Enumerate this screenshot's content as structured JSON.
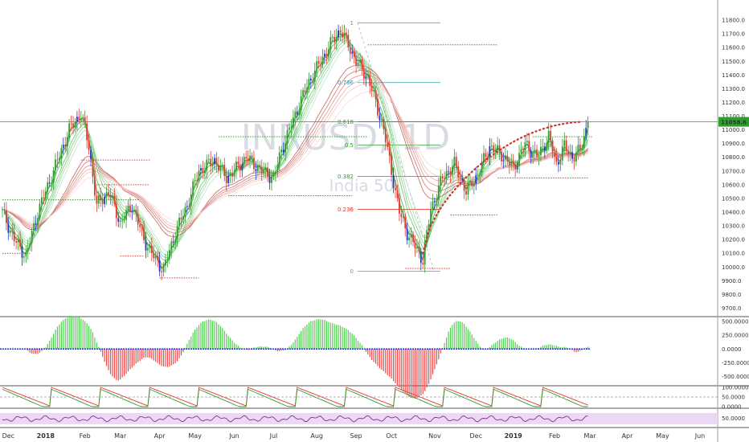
{
  "chart_data": {
    "type": "candlestick",
    "title": "",
    "watermark": {
      "symbol": "INRUSD, 1D",
      "subtitle": "India 50"
    },
    "price_axis": {
      "ylim": [
        9650,
        11900
      ],
      "ticks": [
        "11800.0",
        "11700.0",
        "11600.0",
        "11500.0",
        "11400.0",
        "11300.0",
        "11200.0",
        "11100.0",
        "11000.0",
        "10900.0",
        "10800.0",
        "10700.0",
        "10600.0",
        "10500.0",
        "10400.0",
        "10300.0",
        "10200.0",
        "10100.0",
        "10000.0",
        "9900.0",
        "9800.0",
        "9700.0"
      ]
    },
    "last_price": "11058.6",
    "last_price_color": "#2e9e2e",
    "osc_axis": {
      "ylim": [
        -640,
        560
      ],
      "ticks": [
        "500.0000",
        "250.0000",
        "0.0000",
        "-250.0000",
        "-500.0000"
      ]
    },
    "stoch_axis": {
      "ylim": [
        0,
        100
      ],
      "ticks": [
        "100.0000",
        "50.0000",
        "0.0000"
      ]
    },
    "rsi_axis": {
      "ticks": [
        "50.0000"
      ]
    },
    "x_axis": {
      "months": [
        {
          "label": "Dec",
          "bar": 3
        },
        {
          "label": "2018",
          "bar": 22
        },
        {
          "label": "Feb",
          "bar": 42
        },
        {
          "label": "Mar",
          "bar": 60
        },
        {
          "label": "Apr",
          "bar": 80
        },
        {
          "label": "May",
          "bar": 98
        },
        {
          "label": "Jun",
          "bar": 118
        },
        {
          "label": "Jul",
          "bar": 138
        },
        {
          "label": "Aug",
          "bar": 160
        },
        {
          "label": "Sep",
          "bar": 180
        },
        {
          "label": "Oct",
          "bar": 198
        },
        {
          "label": "Nov",
          "bar": 220
        },
        {
          "label": "Dec",
          "bar": 241
        },
        {
          "label": "2019",
          "bar": 260
        },
        {
          "label": "Feb",
          "bar": 281
        },
        {
          "label": "Mar",
          "bar": 299
        },
        {
          "label": "Apr",
          "bar": 318
        },
        {
          "label": "May",
          "bar": 336
        },
        {
          "label": "Jun",
          "bar": 355
        }
      ]
    },
    "key_points": [
      [
        0,
        10400
      ],
      [
        6,
        10200
      ],
      [
        12,
        10080
      ],
      [
        18,
        10400
      ],
      [
        26,
        10700
      ],
      [
        34,
        11000
      ],
      [
        40,
        11120
      ],
      [
        44,
        10880
      ],
      [
        48,
        10450
      ],
      [
        54,
        10550
      ],
      [
        60,
        10320
      ],
      [
        66,
        10450
      ],
      [
        72,
        10200
      ],
      [
        78,
        10050
      ],
      [
        82,
        9980
      ],
      [
        88,
        10250
      ],
      [
        94,
        10450
      ],
      [
        100,
        10700
      ],
      [
        108,
        10780
      ],
      [
        114,
        10650
      ],
      [
        118,
        10700
      ],
      [
        124,
        10800
      ],
      [
        132,
        10700
      ],
      [
        138,
        10650
      ],
      [
        142,
        10850
      ],
      [
        150,
        11150
      ],
      [
        156,
        11350
      ],
      [
        162,
        11500
      ],
      [
        168,
        11650
      ],
      [
        172,
        11730
      ],
      [
        176,
        11620
      ],
      [
        180,
        11500
      ],
      [
        186,
        11380
      ],
      [
        190,
        11200
      ],
      [
        194,
        11000
      ],
      [
        198,
        10700
      ],
      [
        202,
        10400
      ],
      [
        206,
        10250
      ],
      [
        210,
        10150
      ],
      [
        214,
        10050
      ],
      [
        218,
        10420
      ],
      [
        224,
        10650
      ],
      [
        230,
        10750
      ],
      [
        236,
        10550
      ],
      [
        242,
        10680
      ],
      [
        248,
        10880
      ],
      [
        254,
        10820
      ],
      [
        260,
        10720
      ],
      [
        266,
        10900
      ],
      [
        272,
        10800
      ],
      [
        278,
        10950
      ],
      [
        282,
        10750
      ],
      [
        286,
        10880
      ],
      [
        290,
        10800
      ],
      [
        294,
        10850
      ],
      [
        298,
        11058
      ]
    ],
    "ema_ribbon": {
      "periods": [
        3,
        5,
        8,
        10,
        12,
        15,
        30,
        35,
        40,
        45,
        50,
        60
      ],
      "colors": [
        "#2aa52a",
        "#44b044",
        "#5fbf5f",
        "#7ccf7c",
        "#9ed99e",
        "#b6e3cf",
        "#c2584f",
        "#d06f68",
        "#de8a84",
        "#eaa8a4",
        "#f2c4c1",
        "#f7dbd9"
      ]
    },
    "fibonacci": [
      {
        "label": "1",
        "price": 11780
      },
      {
        "label": "0.786",
        "price": 11345
      },
      {
        "label": "0.618",
        "price": 11060
      },
      {
        "label": "0.5",
        "price": 10890
      },
      {
        "label": "0.382",
        "price": 10660
      },
      {
        "label": "0.236",
        "price": 10420
      },
      {
        "label": "0",
        "price": 9970
      }
    ],
    "colors": {
      "up": "#2e9e2e",
      "down": "#e53935",
      "neutral": "#2333cc",
      "osc_up": "#4bd34b",
      "osc_down": "#f04848",
      "rsi": "#8b2b9c",
      "rsi_band": "#ebd9f3"
    }
  }
}
